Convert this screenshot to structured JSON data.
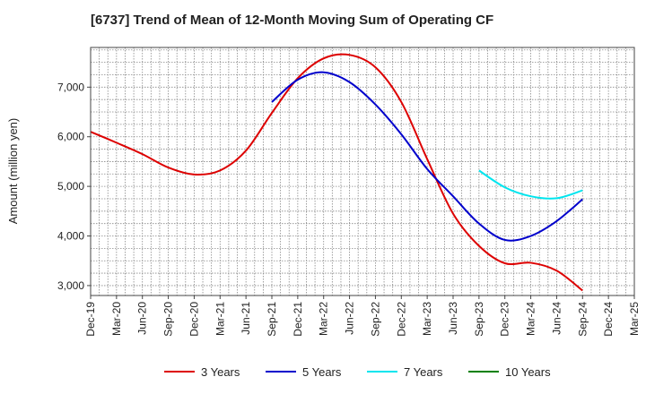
{
  "chart_data": {
    "type": "line",
    "title": "[6737]  Trend of Mean of 12-Month Moving Sum of Operating CF",
    "xlabel": "",
    "ylabel": "Amount (million yen)",
    "ylim": [
      2800,
      7800
    ],
    "yticks": [
      3000,
      4000,
      5000,
      6000,
      7000
    ],
    "ytick_labels": [
      "3,000",
      "4,000",
      "5,000",
      "6,000",
      "7,000"
    ],
    "x_categories": [
      "Dec-19",
      "Mar-20",
      "Jun-20",
      "Sep-20",
      "Dec-20",
      "Mar-21",
      "Jun-21",
      "Sep-21",
      "Dec-21",
      "Mar-22",
      "Jun-22",
      "Sep-22",
      "Dec-22",
      "Mar-23",
      "Jun-23",
      "Sep-23",
      "Dec-23",
      "Mar-24",
      "Jun-24",
      "Sep-24",
      "Dec-24",
      "Mar-25"
    ],
    "grid": true,
    "legend_position": "bottom",
    "series": [
      {
        "name": "3 Years",
        "color": "#dd0000",
        "points": [
          [
            0,
            6100
          ],
          [
            1,
            5880
          ],
          [
            2,
            5650
          ],
          [
            3,
            5380
          ],
          [
            4,
            5240
          ],
          [
            5,
            5320
          ],
          [
            6,
            5720
          ],
          [
            7,
            6480
          ],
          [
            8,
            7180
          ],
          [
            9,
            7580
          ],
          [
            10,
            7650
          ],
          [
            11,
            7400
          ],
          [
            12,
            6700
          ],
          [
            13,
            5550
          ],
          [
            14,
            4450
          ],
          [
            15,
            3800
          ],
          [
            16,
            3450
          ],
          [
            17,
            3460
          ],
          [
            18,
            3300
          ],
          [
            19,
            2900
          ]
        ]
      },
      {
        "name": "5 Years",
        "color": "#0000cc",
        "points": [
          [
            7,
            6700
          ],
          [
            8,
            7150
          ],
          [
            9,
            7300
          ],
          [
            10,
            7100
          ],
          [
            11,
            6650
          ],
          [
            12,
            6050
          ],
          [
            13,
            5350
          ],
          [
            14,
            4800
          ],
          [
            15,
            4250
          ],
          [
            16,
            3920
          ],
          [
            17,
            4000
          ],
          [
            18,
            4300
          ],
          [
            19,
            4740
          ]
        ]
      },
      {
        "name": "7 Years",
        "color": "#00e5ee",
        "points": [
          [
            15,
            5320
          ],
          [
            16,
            4980
          ],
          [
            17,
            4800
          ],
          [
            18,
            4760
          ],
          [
            19,
            4920
          ]
        ]
      },
      {
        "name": "10 Years",
        "color": "#008000",
        "points": []
      }
    ]
  }
}
